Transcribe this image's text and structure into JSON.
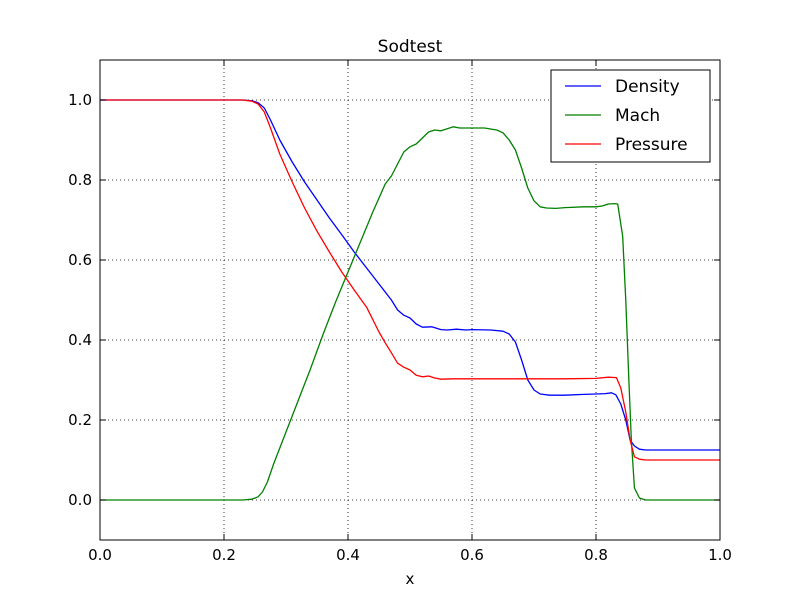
{
  "chart_data": {
    "type": "line",
    "title": "Sodtest",
    "xlabel": "x",
    "ylabel": "",
    "xlim": [
      0.0,
      1.0
    ],
    "ylim": [
      -0.1,
      1.1
    ],
    "xticks": [
      0.0,
      0.2,
      0.4,
      0.6,
      0.8,
      1.0
    ],
    "xtick_labels": [
      "0.0",
      "0.2",
      "0.4",
      "0.6",
      "0.8",
      "1.0"
    ],
    "yticks": [
      0.0,
      0.2,
      0.4,
      0.6,
      0.8,
      1.0
    ],
    "ytick_labels": [
      "0.0",
      "0.2",
      "0.4",
      "0.6",
      "0.8",
      "1.0"
    ],
    "grid": true,
    "legend_position": "top-right",
    "series": [
      {
        "name": "Density",
        "color": "#0000ff",
        "points": [
          [
            0.0,
            1.0
          ],
          [
            0.2,
            1.0
          ],
          [
            0.23,
            1.0
          ],
          [
            0.245,
            0.998
          ],
          [
            0.255,
            0.993
          ],
          [
            0.265,
            0.98
          ],
          [
            0.275,
            0.95
          ],
          [
            0.29,
            0.9
          ],
          [
            0.31,
            0.845
          ],
          [
            0.33,
            0.795
          ],
          [
            0.35,
            0.75
          ],
          [
            0.37,
            0.705
          ],
          [
            0.39,
            0.663
          ],
          [
            0.41,
            0.62
          ],
          [
            0.43,
            0.58
          ],
          [
            0.45,
            0.54
          ],
          [
            0.47,
            0.5
          ],
          [
            0.48,
            0.475
          ],
          [
            0.49,
            0.462
          ],
          [
            0.5,
            0.455
          ],
          [
            0.51,
            0.44
          ],
          [
            0.52,
            0.432
          ],
          [
            0.535,
            0.433
          ],
          [
            0.55,
            0.426
          ],
          [
            0.56,
            0.425
          ],
          [
            0.575,
            0.427
          ],
          [
            0.59,
            0.425
          ],
          [
            0.6,
            0.426
          ],
          [
            0.63,
            0.425
          ],
          [
            0.65,
            0.422
          ],
          [
            0.66,
            0.415
          ],
          [
            0.67,
            0.395
          ],
          [
            0.68,
            0.35
          ],
          [
            0.69,
            0.3
          ],
          [
            0.7,
            0.275
          ],
          [
            0.71,
            0.265
          ],
          [
            0.725,
            0.262
          ],
          [
            0.75,
            0.262
          ],
          [
            0.78,
            0.264
          ],
          [
            0.8,
            0.265
          ],
          [
            0.815,
            0.266
          ],
          [
            0.825,
            0.268
          ],
          [
            0.832,
            0.263
          ],
          [
            0.84,
            0.24
          ],
          [
            0.848,
            0.2
          ],
          [
            0.855,
            0.15
          ],
          [
            0.862,
            0.135
          ],
          [
            0.87,
            0.127
          ],
          [
            0.88,
            0.125
          ],
          [
            0.9,
            0.125
          ],
          [
            1.0,
            0.125
          ]
        ]
      },
      {
        "name": "Mach",
        "color": "#008000",
        "points": [
          [
            0.0,
            0.0
          ],
          [
            0.2,
            0.0
          ],
          [
            0.23,
            0.0
          ],
          [
            0.245,
            0.002
          ],
          [
            0.255,
            0.008
          ],
          [
            0.262,
            0.02
          ],
          [
            0.27,
            0.045
          ],
          [
            0.28,
            0.09
          ],
          [
            0.3,
            0.17
          ],
          [
            0.32,
            0.25
          ],
          [
            0.34,
            0.33
          ],
          [
            0.36,
            0.415
          ],
          [
            0.38,
            0.495
          ],
          [
            0.4,
            0.57
          ],
          [
            0.42,
            0.645
          ],
          [
            0.44,
            0.72
          ],
          [
            0.46,
            0.79
          ],
          [
            0.47,
            0.81
          ],
          [
            0.48,
            0.84
          ],
          [
            0.49,
            0.87
          ],
          [
            0.5,
            0.883
          ],
          [
            0.51,
            0.89
          ],
          [
            0.52,
            0.905
          ],
          [
            0.53,
            0.92
          ],
          [
            0.54,
            0.925
          ],
          [
            0.55,
            0.923
          ],
          [
            0.56,
            0.928
          ],
          [
            0.57,
            0.933
          ],
          [
            0.58,
            0.93
          ],
          [
            0.6,
            0.93
          ],
          [
            0.62,
            0.93
          ],
          [
            0.64,
            0.925
          ],
          [
            0.65,
            0.918
          ],
          [
            0.66,
            0.9
          ],
          [
            0.67,
            0.875
          ],
          [
            0.68,
            0.83
          ],
          [
            0.69,
            0.78
          ],
          [
            0.7,
            0.748
          ],
          [
            0.71,
            0.733
          ],
          [
            0.72,
            0.73
          ],
          [
            0.735,
            0.729
          ],
          [
            0.75,
            0.731
          ],
          [
            0.78,
            0.733
          ],
          [
            0.8,
            0.733
          ],
          [
            0.81,
            0.735
          ],
          [
            0.82,
            0.74
          ],
          [
            0.83,
            0.741
          ],
          [
            0.835,
            0.74
          ],
          [
            0.843,
            0.66
          ],
          [
            0.848,
            0.5
          ],
          [
            0.853,
            0.3
          ],
          [
            0.857,
            0.15
          ],
          [
            0.862,
            0.03
          ],
          [
            0.87,
            0.005
          ],
          [
            0.88,
            0.0
          ],
          [
            1.0,
            0.0
          ]
        ]
      },
      {
        "name": "Pressure",
        "color": "#ff0000",
        "points": [
          [
            0.0,
            1.0
          ],
          [
            0.2,
            1.0
          ],
          [
            0.23,
            1.0
          ],
          [
            0.245,
            0.997
          ],
          [
            0.255,
            0.99
          ],
          [
            0.265,
            0.97
          ],
          [
            0.275,
            0.93
          ],
          [
            0.29,
            0.865
          ],
          [
            0.31,
            0.795
          ],
          [
            0.33,
            0.73
          ],
          [
            0.35,
            0.672
          ],
          [
            0.37,
            0.62
          ],
          [
            0.39,
            0.57
          ],
          [
            0.41,
            0.525
          ],
          [
            0.43,
            0.482
          ],
          [
            0.45,
            0.42
          ],
          [
            0.46,
            0.393
          ],
          [
            0.47,
            0.368
          ],
          [
            0.48,
            0.342
          ],
          [
            0.49,
            0.332
          ],
          [
            0.5,
            0.325
          ],
          [
            0.51,
            0.312
          ],
          [
            0.52,
            0.308
          ],
          [
            0.53,
            0.31
          ],
          [
            0.54,
            0.305
          ],
          [
            0.55,
            0.302
          ],
          [
            0.57,
            0.303
          ],
          [
            0.6,
            0.303
          ],
          [
            0.65,
            0.303
          ],
          [
            0.7,
            0.303
          ],
          [
            0.75,
            0.303
          ],
          [
            0.8,
            0.304
          ],
          [
            0.82,
            0.307
          ],
          [
            0.833,
            0.306
          ],
          [
            0.84,
            0.28
          ],
          [
            0.848,
            0.22
          ],
          [
            0.855,
            0.15
          ],
          [
            0.862,
            0.108
          ],
          [
            0.87,
            0.102
          ],
          [
            0.88,
            0.1
          ],
          [
            0.9,
            0.1
          ],
          [
            1.0,
            0.1
          ]
        ]
      }
    ]
  }
}
